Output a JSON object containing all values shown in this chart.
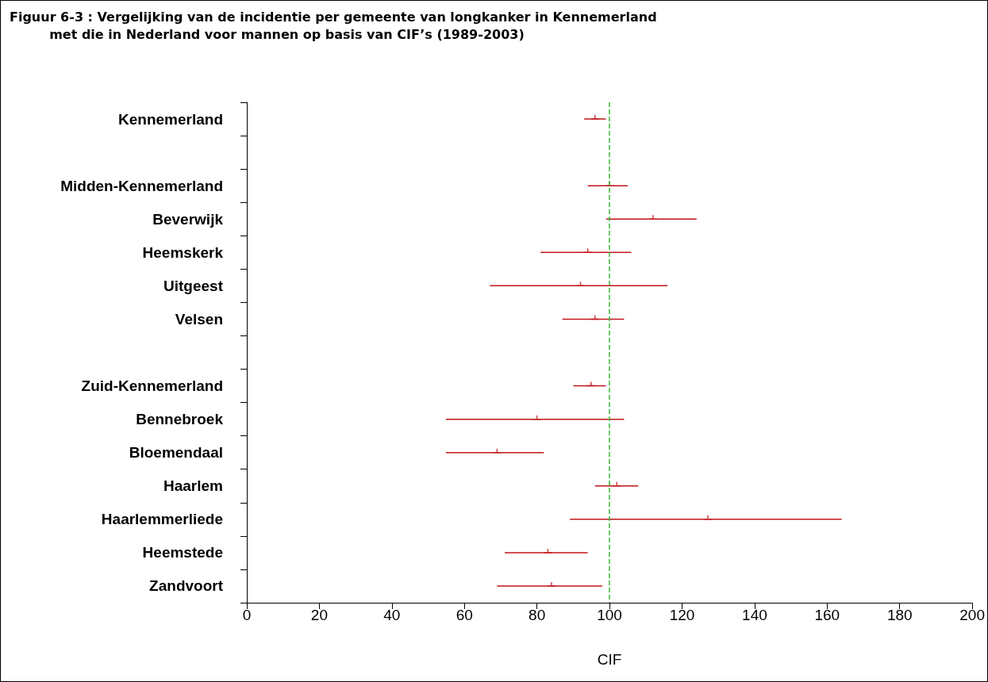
{
  "chart_data": {
    "type": "scatter",
    "orientation": "horizontal",
    "title": "Figuur 6-3 : Vergelijking van de incidentie per gemeente van longkanker in Kennemerland\n         met die in Nederland voor mannen op basis van CIF’s (1989-2003)",
    "xlabel": "CIF",
    "categories": [
      "Kennemerland",
      null,
      "Midden-Kennemerland",
      "Beverwijk",
      "Heemskerk",
      "Uitgeest",
      "Velsen",
      null,
      "Zuid-Kennemerland",
      "Bennebroek",
      "Bloemendaal",
      "Haarlem",
      "Haarlemmerliede",
      "Heemstede",
      "Zandvoort"
    ],
    "series": [
      {
        "color": "#c0161b",
        "values": [
          96.0,
          null,
          100.0,
          112.0,
          94.0,
          92.0,
          96.0,
          null,
          94.9,
          80.0,
          69.0,
          102.0,
          127.1,
          83.0,
          84.0
        ],
        "errors": [
          [
            93.0,
            99.0
          ],
          null,
          [
            94.0,
            105.0
          ],
          [
            99.1,
            124.0
          ],
          [
            81.0,
            106.0
          ],
          [
            67.0,
            116.0
          ],
          [
            87.0,
            104.0
          ],
          null,
          [
            90.0,
            99.0
          ],
          [
            54.9,
            104.0
          ],
          [
            54.9,
            81.9
          ],
          [
            96.0,
            107.9
          ],
          [
            89.1,
            164.0
          ],
          [
            71.1,
            94.0
          ],
          [
            69.0,
            98.0
          ]
        ]
      }
    ],
    "xlim": [
      0,
      200
    ],
    "xticks": [
      0,
      20,
      40,
      60,
      80,
      100,
      120,
      140,
      160,
      180,
      200
    ],
    "ref_lines": [
      {
        "axis": "x",
        "value": 100,
        "color": "#33bb33",
        "line_style": "dashed"
      }
    ],
    "grid": false
  }
}
